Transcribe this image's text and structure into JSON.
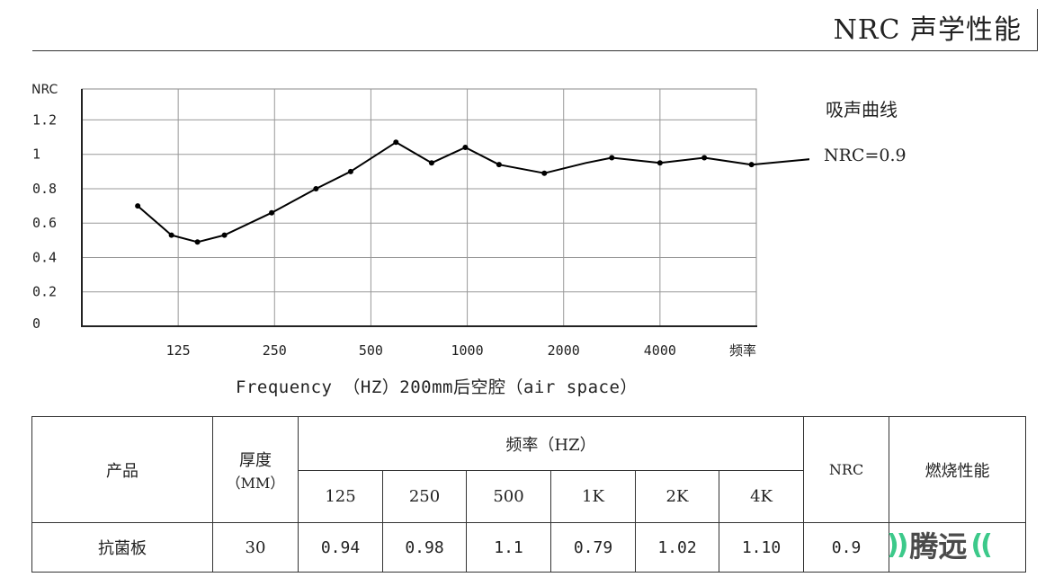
{
  "header": {
    "title": "NRC 声学性能"
  },
  "side": {
    "title": "吸声曲线",
    "nrc_label": "NRC=0.9"
  },
  "caption": "Frequency （HZ）200mm后空腔（air space）",
  "chart_data": {
    "type": "line",
    "ylabel": "NRC",
    "yticks": [
      "0",
      "0.2",
      "0.4",
      "0.6",
      "0.8",
      "1",
      "1.2"
    ],
    "ylim": [
      0,
      1.38
    ],
    "xticks": [
      "125",
      "250",
      "500",
      "1000",
      "2000",
      "4000",
      "频率"
    ],
    "grid": true,
    "series": [
      {
        "color": "#000000",
        "x": [
          0.58,
          0.93,
          1.2,
          1.48,
          1.97,
          2.43,
          2.79,
          3.26,
          3.63,
          3.98,
          4.33,
          4.8,
          5.23,
          5.5,
          6.0,
          6.46,
          6.95,
          7.72
        ],
        "y": [
          0.7,
          0.53,
          0.49,
          0.53,
          0.66,
          0.8,
          0.9,
          1.07,
          0.95,
          1.04,
          0.94,
          0.89,
          0.95,
          0.98,
          0.95,
          0.98,
          0.94,
          0.98
        ],
        "markers": [
          true,
          true,
          true,
          true,
          true,
          true,
          true,
          true,
          true,
          true,
          true,
          true,
          false,
          true,
          true,
          true,
          true,
          true
        ]
      }
    ]
  },
  "table": {
    "headers": {
      "product": "产品",
      "thickness": "厚度",
      "thickness_unit": "（MM）",
      "frequency": "频率（HZ）",
      "freqs": [
        "125",
        "250",
        "500",
        "1K",
        "2K",
        "4K"
      ],
      "nrc": "NRC",
      "fire": "燃烧性能"
    },
    "row": {
      "product": "抗菌板",
      "thickness": "30",
      "values": [
        "0.94",
        "0.98",
        "1.1",
        "0.79",
        "1.02",
        "1.10"
      ],
      "nrc": "0.9",
      "fire": ""
    }
  },
  "logo": {
    "text": "腾远",
    "left_mark": "))",
    "right_mark": "(("
  }
}
